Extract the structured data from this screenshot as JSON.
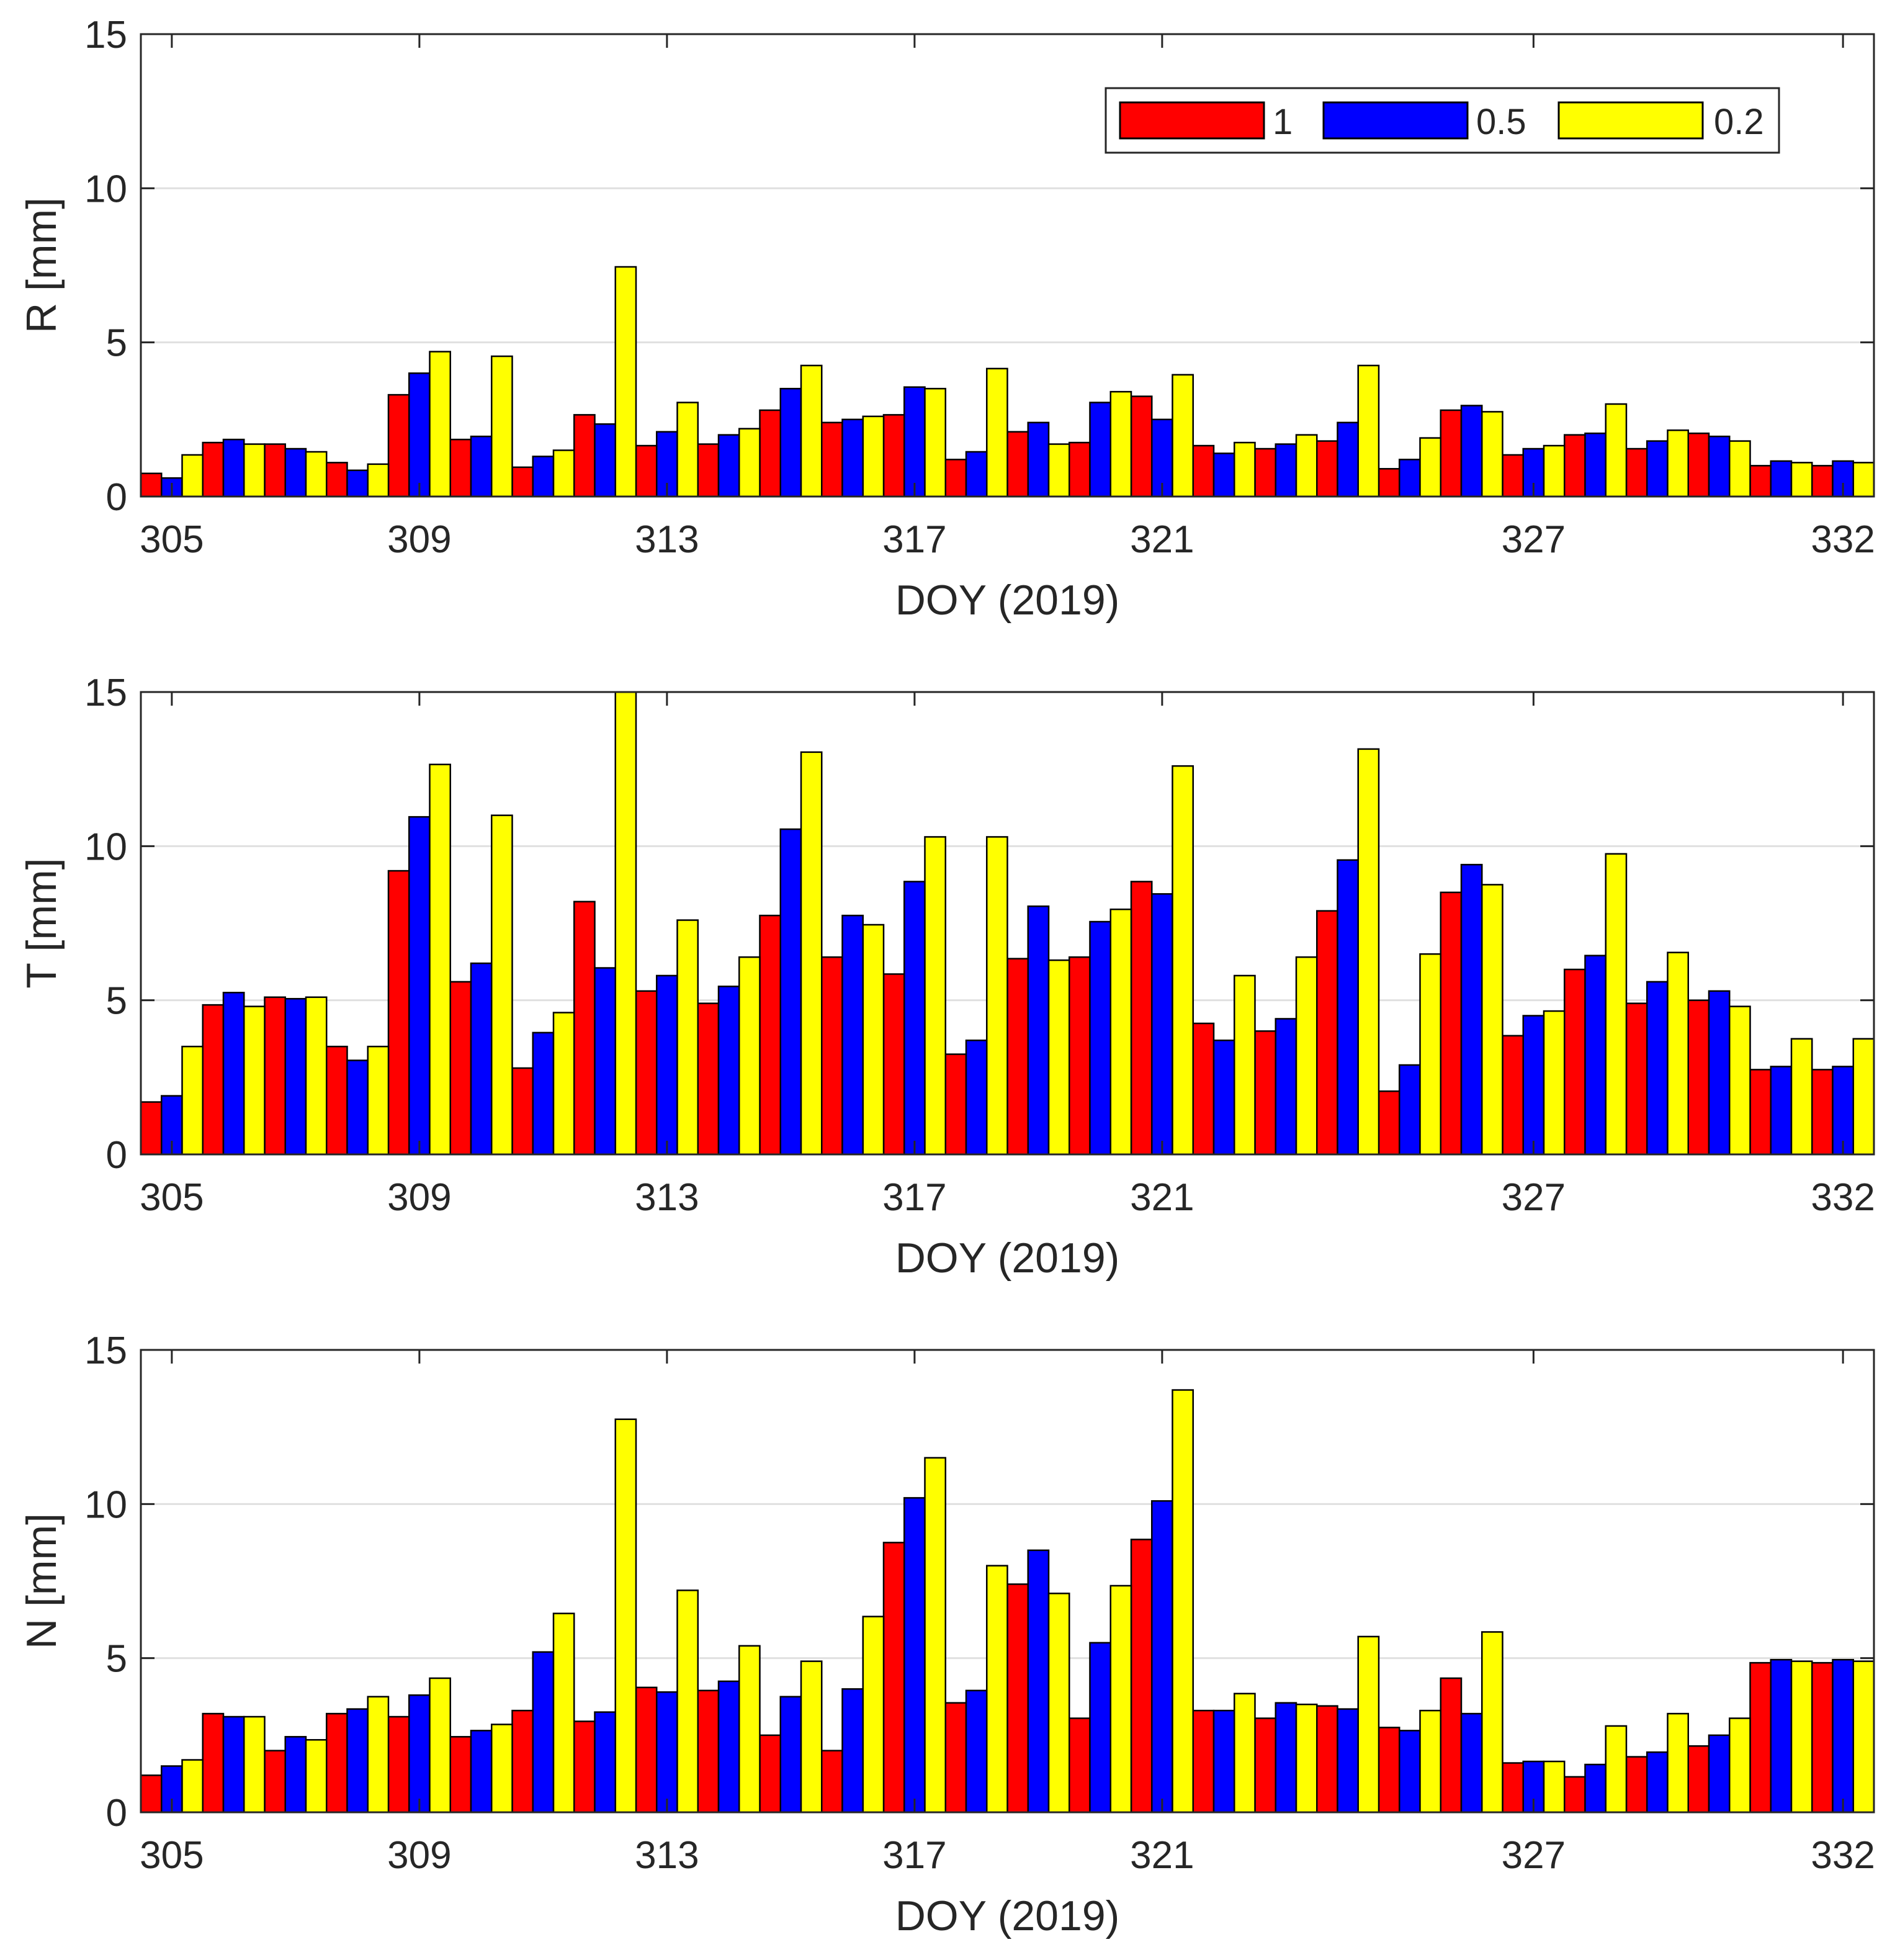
{
  "chart_data": [
    {
      "type": "bar",
      "panel": "R",
      "ylabel": "R [mm]",
      "xlabel": "DOY (2019)",
      "ylim": [
        0,
        15
      ],
      "yticks": [
        0,
        5,
        10,
        15
      ],
      "categories": [
        305,
        306,
        307,
        308,
        309,
        310,
        311,
        312,
        313,
        314,
        315,
        316,
        317,
        318,
        319,
        320,
        321,
        322,
        323,
        324,
        325,
        326,
        327,
        328,
        329,
        330,
        331,
        332
      ],
      "xtick_labels": [
        "305",
        "309",
        "313",
        "317",
        "321",
        "327",
        "332"
      ],
      "grid": "horizontal",
      "legend": "top-right",
      "series": [
        {
          "name": "1",
          "values": [
            0.75,
            1.75,
            1.7,
            1.1,
            3.3,
            1.85,
            0.95,
            2.65,
            1.65,
            1.7,
            2.8,
            2.4,
            2.65,
            1.2,
            2.1,
            1.75,
            3.25,
            1.65,
            1.55,
            1.8,
            0.9,
            2.8,
            1.35,
            2.0,
            1.55,
            2.05,
            1.0,
            1.0
          ]
        },
        {
          "name": "0.5",
          "values": [
            0.6,
            1.85,
            1.55,
            0.85,
            4.0,
            1.95,
            1.3,
            2.35,
            2.1,
            2.0,
            3.5,
            2.5,
            3.55,
            1.45,
            2.4,
            3.05,
            2.5,
            1.4,
            1.7,
            2.4,
            1.2,
            2.95,
            1.55,
            2.05,
            1.8,
            1.95,
            1.15,
            1.15
          ]
        },
        {
          "name": "0.2",
          "values": [
            1.35,
            1.7,
            1.45,
            1.05,
            4.7,
            4.55,
            1.5,
            7.45,
            3.05,
            2.2,
            4.25,
            2.6,
            3.5,
            4.15,
            1.7,
            3.4,
            3.95,
            1.75,
            2.0,
            4.25,
            1.9,
            2.75,
            1.65,
            3.0,
            2.15,
            1.8,
            1.1,
            1.1
          ]
        }
      ]
    },
    {
      "type": "bar",
      "panel": "T",
      "ylabel": "T [mm]",
      "xlabel": "DOY (2019)",
      "ylim": [
        0,
        15
      ],
      "yticks": [
        0,
        5,
        10,
        15
      ],
      "categories": [
        305,
        306,
        307,
        308,
        309,
        310,
        311,
        312,
        313,
        314,
        315,
        316,
        317,
        318,
        319,
        320,
        321,
        322,
        323,
        324,
        325,
        326,
        327,
        328,
        329,
        330,
        331,
        332
      ],
      "xtick_labels": [
        "305",
        "309",
        "313",
        "317",
        "321",
        "327",
        "332"
      ],
      "grid": "horizontal",
      "series": [
        {
          "name": "1",
          "values": [
            1.7,
            4.85,
            5.1,
            3.5,
            9.2,
            5.6,
            2.8,
            8.2,
            5.3,
            4.9,
            7.75,
            6.4,
            5.85,
            3.25,
            6.35,
            6.4,
            8.85,
            4.25,
            4.0,
            7.9,
            2.05,
            8.5,
            3.85,
            6.0,
            4.9,
            5.0,
            2.75,
            2.75
          ]
        },
        {
          "name": "0.5",
          "values": [
            1.9,
            5.25,
            5.05,
            3.05,
            10.95,
            6.2,
            3.95,
            6.05,
            5.8,
            5.45,
            10.55,
            7.75,
            8.85,
            3.7,
            8.05,
            7.55,
            8.45,
            3.7,
            4.4,
            9.55,
            2.9,
            9.4,
            4.5,
            6.45,
            5.6,
            5.3,
            2.85,
            2.85
          ]
        },
        {
          "name": "0.2",
          "values": [
            3.5,
            4.8,
            5.1,
            3.5,
            12.65,
            11.0,
            4.6,
            15.0,
            7.6,
            6.4,
            13.05,
            7.45,
            10.3,
            10.3,
            6.3,
            7.95,
            12.6,
            5.8,
            6.4,
            13.15,
            6.5,
            8.75,
            4.65,
            9.75,
            6.55,
            4.8,
            3.75,
            3.75
          ]
        }
      ]
    },
    {
      "type": "bar",
      "panel": "N",
      "ylabel": "N [mm]",
      "xlabel": "DOY (2019)",
      "ylim": [
        0,
        15
      ],
      "yticks": [
        0,
        5,
        10,
        15
      ],
      "categories": [
        305,
        306,
        307,
        308,
        309,
        310,
        311,
        312,
        313,
        314,
        315,
        316,
        317,
        318,
        319,
        320,
        321,
        322,
        323,
        324,
        325,
        326,
        327,
        328,
        329,
        330,
        331,
        332
      ],
      "xtick_labels": [
        "305",
        "309",
        "313",
        "317",
        "321",
        "327",
        "332"
      ],
      "grid": "horizontal",
      "series": [
        {
          "name": "1",
          "values": [
            1.2,
            3.2,
            2.0,
            3.2,
            3.1,
            2.45,
            3.3,
            2.95,
            4.05,
            3.95,
            2.5,
            2.0,
            8.75,
            3.55,
            7.4,
            3.05,
            8.85,
            3.3,
            3.05,
            3.45,
            2.75,
            4.35,
            1.6,
            1.15,
            1.8,
            2.15,
            4.85,
            4.85
          ]
        },
        {
          "name": "0.5",
          "values": [
            1.5,
            3.1,
            2.45,
            3.35,
            3.8,
            2.65,
            5.2,
            3.25,
            3.9,
            4.25,
            3.75,
            4.0,
            10.2,
            3.95,
            8.5,
            5.5,
            10.1,
            3.3,
            3.55,
            3.35,
            2.65,
            3.2,
            1.65,
            1.55,
            1.95,
            2.5,
            4.95,
            4.95
          ]
        },
        {
          "name": "0.2",
          "values": [
            1.7,
            3.1,
            2.35,
            3.75,
            4.35,
            2.85,
            6.45,
            12.75,
            7.2,
            5.4,
            4.9,
            6.35,
            11.5,
            8.0,
            7.1,
            7.35,
            13.7,
            3.85,
            3.5,
            5.7,
            3.3,
            5.85,
            1.65,
            2.8,
            3.2,
            3.05,
            4.9,
            4.9
          ]
        }
      ]
    }
  ],
  "legend": {
    "entries": [
      {
        "label": "1",
        "color": "#FF0000"
      },
      {
        "label": "0.5",
        "color": "#0000FF"
      },
      {
        "label": "0.2",
        "color": "#FFFF00"
      }
    ]
  },
  "colors": {
    "grid": "#E0E0E0",
    "axis": "#262626",
    "bar_edge": "#000000"
  }
}
